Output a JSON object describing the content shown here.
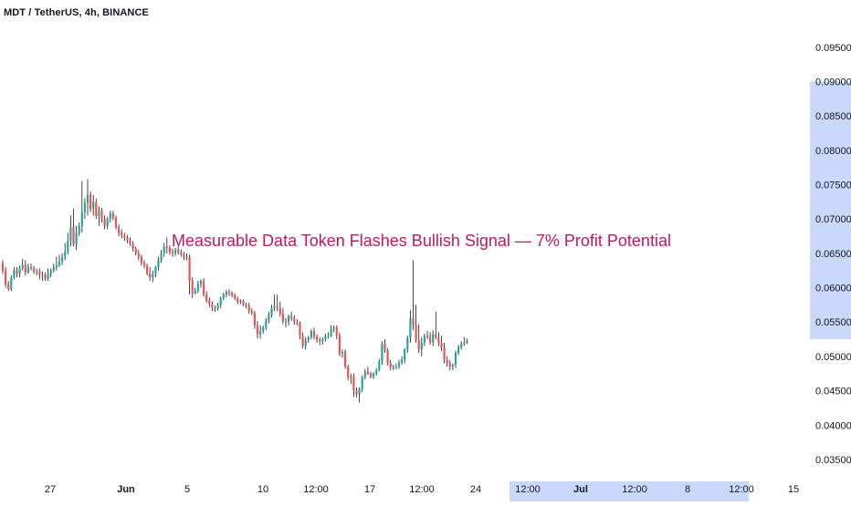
{
  "symbol_title": "MDT / TetherUS, 4h, BINANCE",
  "headline": "Measurable Data Token Flashes Bullish Signal — 7% Profit Potential",
  "colors": {
    "up": "#26a69a",
    "down": "#ef5350",
    "wick": "#131722",
    "axis_text": "#131722",
    "headline": "#c2185b",
    "highlight": "#c9d8fb"
  },
  "chart_data": {
    "type": "candlestick",
    "title": "MDT / TetherUS, 4h, BINANCE",
    "xlabel": "",
    "ylabel": "",
    "ylim": [
      0.033,
      0.0975
    ],
    "y_ticks": [
      "0.09500",
      "0.09000",
      "0.08500",
      "0.08000",
      "0.07500",
      "0.07000",
      "0.06500",
      "0.06000",
      "0.05500",
      "0.05000",
      "0.04500",
      "0.04000",
      "0.03500"
    ],
    "x_ticks": [
      "27",
      "Jun",
      "5",
      "10",
      "12:00",
      "17",
      "12:00",
      "24",
      "12:00",
      "Jul",
      "12:00",
      "8",
      "12:00",
      "15"
    ],
    "y_axis_highlight": [
      0.0525,
      0.09
    ],
    "x_axis_highlight_from_tick": "12:00",
    "bars_per_day": 6,
    "x_axis_extends_days": 26,
    "period": "4h",
    "series": [
      {
        "open": [
          0.0635,
          0.0625,
          0.0605,
          0.0598,
          0.0615,
          0.0625,
          0.062,
          0.0628,
          0.0633,
          0.0622,
          0.063,
          0.0628,
          0.0623,
          0.0624,
          0.0619,
          0.0618,
          0.0613,
          0.062,
          0.0625,
          0.063,
          0.0633,
          0.0638,
          0.0645,
          0.0652,
          0.0668,
          0.0688,
          0.0663,
          0.068,
          0.069,
          0.071,
          0.0723,
          0.0735,
          0.0715,
          0.0725,
          0.0704,
          0.0712,
          0.07,
          0.069,
          0.07,
          0.0708,
          0.0702,
          0.0688,
          0.068,
          0.0676,
          0.0673,
          0.0669,
          0.0664,
          0.0657,
          0.065,
          0.0645,
          0.0636,
          0.0632,
          0.0621,
          0.0615,
          0.062,
          0.063,
          0.064,
          0.065,
          0.066,
          0.0658,
          0.0652,
          0.065,
          0.0655,
          0.0652,
          0.0648,
          0.0644,
          0.0645,
          0.061,
          0.0592,
          0.0596,
          0.0605,
          0.061,
          0.059,
          0.0581,
          0.0576,
          0.057,
          0.057,
          0.0575,
          0.0585,
          0.059,
          0.0594,
          0.0592,
          0.0589,
          0.0584,
          0.0579,
          0.0581,
          0.0575,
          0.0574,
          0.0566,
          0.0563,
          0.0545,
          0.0532,
          0.0537,
          0.0542,
          0.0552,
          0.056,
          0.057,
          0.0573,
          0.0571,
          0.0562,
          0.0551,
          0.055,
          0.0559,
          0.0556,
          0.055,
          0.0549,
          0.053,
          0.0515,
          0.0524,
          0.0528,
          0.0537,
          0.0529,
          0.0524,
          0.0522,
          0.0525,
          0.053,
          0.053,
          0.054,
          0.0542,
          0.0531,
          0.0504,
          0.0506,
          0.0485,
          0.0469,
          0.0471,
          0.045,
          0.0445,
          0.0453,
          0.047,
          0.0478,
          0.0475,
          0.047,
          0.0475,
          0.048,
          0.0493,
          0.0518,
          0.0509,
          0.049,
          0.0484,
          0.0485,
          0.0485,
          0.0491,
          0.0495,
          0.051,
          0.0527,
          0.0556,
          0.0545,
          0.0524,
          0.051,
          0.052,
          0.053,
          0.0528,
          0.0521,
          0.0532,
          0.0527,
          0.0519,
          0.0513,
          0.0495,
          0.049,
          0.0485,
          0.0488,
          0.0505,
          0.0513,
          0.0519,
          0.052
        ],
        "high": [
          0.064,
          0.063,
          0.061,
          0.0618,
          0.063,
          0.063,
          0.0632,
          0.0642,
          0.064,
          0.0635,
          0.0635,
          0.0632,
          0.0628,
          0.0628,
          0.0624,
          0.0622,
          0.0628,
          0.0628,
          0.0635,
          0.0645,
          0.0648,
          0.065,
          0.0665,
          0.068,
          0.0705,
          0.0715,
          0.069,
          0.0695,
          0.0755,
          0.073,
          0.0758,
          0.074,
          0.0735,
          0.073,
          0.0718,
          0.0716,
          0.0705,
          0.0703,
          0.0712,
          0.0712,
          0.0705,
          0.0692,
          0.0685,
          0.068,
          0.0677,
          0.0673,
          0.0668,
          0.066,
          0.0655,
          0.0648,
          0.064,
          0.0635,
          0.063,
          0.0625,
          0.0632,
          0.0645,
          0.0655,
          0.0665,
          0.0673,
          0.0662,
          0.0657,
          0.0658,
          0.066,
          0.0656,
          0.0652,
          0.065,
          0.0648,
          0.0615,
          0.06,
          0.061,
          0.0612,
          0.0614,
          0.0595,
          0.0586,
          0.058,
          0.0574,
          0.0578,
          0.0587,
          0.0593,
          0.0597,
          0.0598,
          0.0595,
          0.0592,
          0.0587,
          0.0583,
          0.0583,
          0.0578,
          0.0578,
          0.057,
          0.0566,
          0.0552,
          0.0545,
          0.0545,
          0.0556,
          0.0565,
          0.0575,
          0.059,
          0.059,
          0.058,
          0.057,
          0.0556,
          0.0561,
          0.0565,
          0.056,
          0.0554,
          0.0551,
          0.0535,
          0.0528,
          0.053,
          0.054,
          0.0542,
          0.0532,
          0.0528,
          0.0528,
          0.0533,
          0.0535,
          0.0545,
          0.0545,
          0.0545,
          0.0535,
          0.051,
          0.051,
          0.0488,
          0.0475,
          0.0475,
          0.0455,
          0.0455,
          0.0472,
          0.0482,
          0.0485,
          0.0478,
          0.0477,
          0.0483,
          0.0496,
          0.0522,
          0.0525,
          0.0512,
          0.0495,
          0.0488,
          0.049,
          0.0495,
          0.05,
          0.0512,
          0.053,
          0.0567,
          0.064,
          0.0575,
          0.0547,
          0.0528,
          0.0533,
          0.0537,
          0.0535,
          0.0538,
          0.0565,
          0.0535,
          0.053,
          0.052,
          0.05,
          0.0495,
          0.049,
          0.0508,
          0.0517,
          0.0522,
          0.0528,
          0.0526
        ],
        "low": [
          0.062,
          0.06,
          0.0595,
          0.0595,
          0.0612,
          0.0615,
          0.0615,
          0.0625,
          0.0618,
          0.062,
          0.0625,
          0.062,
          0.0618,
          0.0612,
          0.061,
          0.061,
          0.061,
          0.0615,
          0.0622,
          0.0625,
          0.063,
          0.0633,
          0.064,
          0.0648,
          0.066,
          0.066,
          0.0655,
          0.0675,
          0.068,
          0.07,
          0.0705,
          0.071,
          0.0705,
          0.07,
          0.069,
          0.0695,
          0.0685,
          0.0685,
          0.0695,
          0.0698,
          0.0685,
          0.0675,
          0.0672,
          0.0668,
          0.0665,
          0.0661,
          0.0653,
          0.0647,
          0.064,
          0.0632,
          0.0628,
          0.0618,
          0.061,
          0.0608,
          0.0615,
          0.0625,
          0.0636,
          0.0645,
          0.065,
          0.0648,
          0.0645,
          0.0646,
          0.0648,
          0.0645,
          0.064,
          0.064,
          0.059,
          0.0585,
          0.059,
          0.0592,
          0.06,
          0.0587,
          0.0578,
          0.0572,
          0.0566,
          0.0565,
          0.0567,
          0.057,
          0.0582,
          0.0586,
          0.0588,
          0.0586,
          0.0582,
          0.0576,
          0.0576,
          0.0573,
          0.057,
          0.0562,
          0.056,
          0.054,
          0.0526,
          0.0526,
          0.0533,
          0.0538,
          0.0548,
          0.0557,
          0.0566,
          0.0566,
          0.0558,
          0.0547,
          0.0542,
          0.0545,
          0.0552,
          0.0546,
          0.0545,
          0.0525,
          0.0512,
          0.051,
          0.052,
          0.0525,
          0.0525,
          0.052,
          0.0516,
          0.0517,
          0.0522,
          0.0526,
          0.0528,
          0.0535,
          0.0525,
          0.05,
          0.0498,
          0.0482,
          0.0465,
          0.046,
          0.0441,
          0.044,
          0.0433,
          0.0448,
          0.0466,
          0.0473,
          0.0468,
          0.0467,
          0.0472,
          0.0478,
          0.0488,
          0.0505,
          0.0487,
          0.048,
          0.048,
          0.0481,
          0.0482,
          0.0488,
          0.049,
          0.0505,
          0.052,
          0.0538,
          0.052,
          0.0505,
          0.05,
          0.0515,
          0.0525,
          0.0517,
          0.0515,
          0.0525,
          0.0515,
          0.0508,
          0.049,
          0.0485,
          0.048,
          0.048,
          0.0483,
          0.0502,
          0.051,
          0.0515,
          0.0518
        ],
        "close": [
          0.0625,
          0.0605,
          0.0598,
          0.0615,
          0.0625,
          0.062,
          0.0628,
          0.0633,
          0.0622,
          0.063,
          0.0628,
          0.0623,
          0.0624,
          0.0619,
          0.0618,
          0.0613,
          0.062,
          0.0625,
          0.063,
          0.0633,
          0.0638,
          0.0645,
          0.0652,
          0.0668,
          0.0688,
          0.0663,
          0.068,
          0.069,
          0.071,
          0.0723,
          0.0735,
          0.0715,
          0.0725,
          0.0704,
          0.0712,
          0.07,
          0.069,
          0.07,
          0.0708,
          0.0702,
          0.0688,
          0.068,
          0.0676,
          0.0673,
          0.0669,
          0.0664,
          0.0657,
          0.065,
          0.0645,
          0.0636,
          0.0632,
          0.0621,
          0.0615,
          0.062,
          0.063,
          0.064,
          0.065,
          0.066,
          0.0658,
          0.0652,
          0.065,
          0.0655,
          0.0652,
          0.0648,
          0.0644,
          0.0645,
          0.061,
          0.0592,
          0.0596,
          0.0605,
          0.061,
          0.059,
          0.0581,
          0.0576,
          0.057,
          0.057,
          0.0575,
          0.0585,
          0.059,
          0.0594,
          0.0592,
          0.0589,
          0.0584,
          0.0579,
          0.0581,
          0.0575,
          0.0574,
          0.0566,
          0.0563,
          0.0545,
          0.0532,
          0.0537,
          0.0542,
          0.0552,
          0.056,
          0.057,
          0.0573,
          0.0571,
          0.0562,
          0.0551,
          0.055,
          0.0559,
          0.0556,
          0.055,
          0.0549,
          0.053,
          0.0515,
          0.0524,
          0.0528,
          0.0537,
          0.0529,
          0.0524,
          0.0522,
          0.0525,
          0.053,
          0.053,
          0.054,
          0.0542,
          0.0531,
          0.0504,
          0.0506,
          0.0485,
          0.0469,
          0.0471,
          0.045,
          0.0445,
          0.0453,
          0.047,
          0.0478,
          0.0475,
          0.047,
          0.0475,
          0.048,
          0.0493,
          0.0518,
          0.0509,
          0.049,
          0.0484,
          0.0485,
          0.0485,
          0.0491,
          0.0495,
          0.051,
          0.0527,
          0.0556,
          0.0545,
          0.0524,
          0.051,
          0.052,
          0.053,
          0.0528,
          0.0521,
          0.0532,
          0.0527,
          0.0519,
          0.0513,
          0.0495,
          0.049,
          0.0485,
          0.0488,
          0.0505,
          0.0513,
          0.0519,
          0.052,
          0.0523
        ]
      }
    ],
    "grid": false,
    "legend": "none"
  }
}
